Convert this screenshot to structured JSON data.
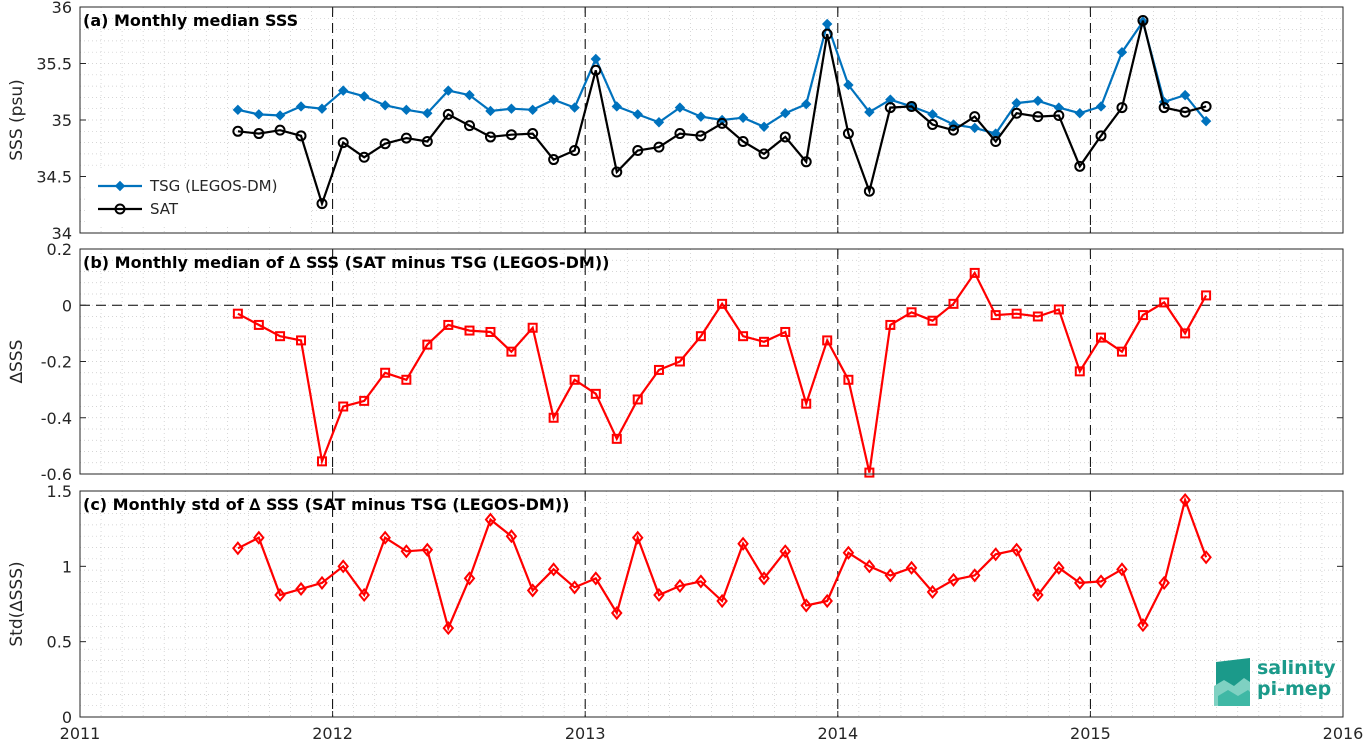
{
  "chart_data": [
    {
      "type": "line",
      "title": "(a) Monthly median SSS",
      "ylabel": "SSS (psu)",
      "xlim": [
        2011,
        2016
      ],
      "ylim": [
        34,
        36
      ],
      "yticks": [
        "34",
        "34.5",
        "35",
        "35.5",
        "36"
      ],
      "legend_position": "left",
      "grid": true,
      "x": [
        2011.625,
        2011.708,
        2011.792,
        2011.875,
        2011.958,
        2012.042,
        2012.125,
        2012.208,
        2012.292,
        2012.375,
        2012.458,
        2012.542,
        2012.625,
        2012.708,
        2012.792,
        2012.875,
        2012.958,
        2013.042,
        2013.125,
        2013.208,
        2013.292,
        2013.375,
        2013.458,
        2013.542,
        2013.625,
        2013.708,
        2013.792,
        2013.875,
        2013.958,
        2014.042,
        2014.125,
        2014.208,
        2014.292,
        2014.375,
        2014.458,
        2014.542,
        2014.625,
        2014.708,
        2014.792,
        2014.875,
        2014.958,
        2015.042,
        2015.125,
        2015.208,
        2015.292,
        2015.375,
        2015.458
      ],
      "series": [
        {
          "name": "TSG (LEGOS-DM)",
          "color": "#0072bd",
          "marker": "diamond-filled",
          "values": [
            35.09,
            35.05,
            35.04,
            35.12,
            35.1,
            35.26,
            35.21,
            35.13,
            35.09,
            35.06,
            35.26,
            35.22,
            35.08,
            35.1,
            35.09,
            35.18,
            35.11,
            35.54,
            35.12,
            35.05,
            34.98,
            35.11,
            35.03,
            35.0,
            35.02,
            34.94,
            35.06,
            35.14,
            35.85,
            35.31,
            35.07,
            35.18,
            35.12,
            35.05,
            34.96,
            34.93,
            34.88,
            35.15,
            35.17,
            35.11,
            35.06,
            35.12,
            35.6,
            35.87,
            35.16,
            35.22,
            34.99
          ]
        },
        {
          "name": "SAT",
          "color": "#000000",
          "marker": "circle-open",
          "values": [
            34.9,
            34.88,
            34.91,
            34.86,
            34.26,
            34.8,
            34.67,
            34.79,
            34.84,
            34.81,
            35.05,
            34.95,
            34.85,
            34.87,
            34.88,
            34.65,
            34.73,
            35.44,
            34.54,
            34.73,
            34.76,
            34.88,
            34.86,
            34.97,
            34.81,
            34.7,
            34.85,
            34.63,
            35.76,
            34.88,
            34.37,
            35.11,
            35.12,
            34.96,
            34.91,
            35.03,
            34.81,
            35.06,
            35.03,
            35.04,
            34.59,
            34.86,
            35.11,
            35.88,
            35.11,
            35.07,
            35.12
          ]
        }
      ]
    },
    {
      "type": "line",
      "title": "(b) Monthly median of ∆ SSS (SAT minus TSG (LEGOS-DM))",
      "ylabel": "∆SSS",
      "xlim": [
        2011,
        2016
      ],
      "ylim": [
        -0.6,
        0.2
      ],
      "yticks": [
        "-0.6",
        "-0.4",
        "-0.2",
        "0",
        "0.2"
      ],
      "reference_line": 0,
      "grid": true,
      "series": [
        {
          "color": "#ff0000",
          "marker": "square-open",
          "values": [
            -0.03,
            -0.07,
            -0.11,
            -0.125,
            -0.555,
            -0.36,
            -0.34,
            -0.24,
            -0.265,
            -0.14,
            -0.07,
            -0.09,
            -0.095,
            -0.165,
            -0.08,
            -0.4,
            -0.265,
            -0.315,
            -0.475,
            -0.335,
            -0.23,
            -0.2,
            -0.11,
            0.005,
            -0.11,
            -0.13,
            -0.095,
            -0.35,
            -0.125,
            -0.265,
            -0.595,
            -0.07,
            -0.025,
            -0.055,
            0.005,
            0.115,
            -0.035,
            -0.03,
            -0.04,
            -0.015,
            -0.235,
            -0.115,
            -0.165,
            -0.035,
            0.01,
            -0.1,
            0.035
          ]
        }
      ]
    },
    {
      "type": "line",
      "title": "(c) Monthly std of ∆ SSS (SAT minus TSG (LEGOS-DM))",
      "ylabel": "Std(∆SSS)",
      "xlim": [
        2011,
        2016
      ],
      "ylim": [
        0,
        1.5
      ],
      "yticks": [
        "0",
        "0.5",
        "1",
        "1.5"
      ],
      "xticks": [
        "2011",
        "2012",
        "2013",
        "2014",
        "2015",
        "2016"
      ],
      "grid": true,
      "series": [
        {
          "color": "#ff0000",
          "marker": "diamond-open",
          "values": [
            1.12,
            1.19,
            0.81,
            0.85,
            0.89,
            1.0,
            0.81,
            1.19,
            1.1,
            1.11,
            0.59,
            0.92,
            1.31,
            1.2,
            0.84,
            0.98,
            0.86,
            0.92,
            0.69,
            1.19,
            0.81,
            0.87,
            0.9,
            0.77,
            1.15,
            0.92,
            1.1,
            0.74,
            0.77,
            1.09,
            1.0,
            0.94,
            0.99,
            0.83,
            0.91,
            0.94,
            1.08,
            1.11,
            0.81,
            0.99,
            0.89,
            0.9,
            0.98,
            0.61,
            0.89,
            1.44,
            1.06
          ]
        }
      ]
    }
  ],
  "logo": {
    "line1": "salinity",
    "line2": "pi-mep",
    "color": "#1b9a8a"
  }
}
